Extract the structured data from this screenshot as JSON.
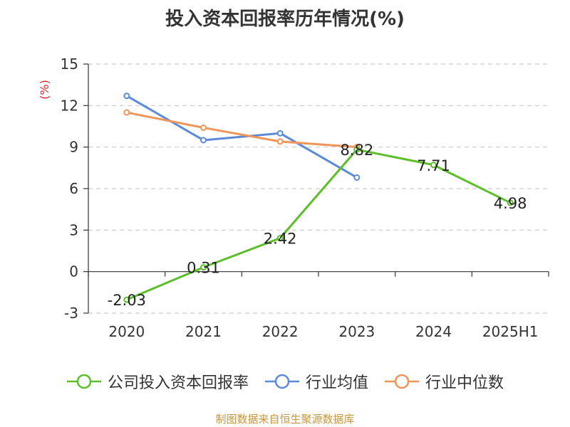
{
  "chart_data": {
    "type": "line",
    "title": "投入资本回报率历年情况(%)",
    "ylabel": "(%)",
    "categories": [
      "2020",
      "2021",
      "2022",
      "2023",
      "2024",
      "2025H1"
    ],
    "ylim": [
      -3,
      15
    ],
    "yticks": [
      -3,
      0,
      3,
      6,
      9,
      12,
      15
    ],
    "grid": true,
    "legend_position": "bottom",
    "series": [
      {
        "name": "公司投入资本回报率",
        "color": "#5cbf2a",
        "values": [
          -2.03,
          0.31,
          2.42,
          8.82,
          7.71,
          4.98
        ],
        "labels": [
          "-2.03",
          "0.31",
          "2.42",
          "8.82",
          "7.71",
          "4.98"
        ]
      },
      {
        "name": "行业均值",
        "color": "#5b8ad8",
        "values": [
          12.7,
          9.5,
          10.0,
          6.8,
          null,
          null
        ]
      },
      {
        "name": "行业中位数",
        "color": "#f0955a",
        "values": [
          11.5,
          10.4,
          9.4,
          9.0,
          null,
          null
        ]
      }
    ]
  },
  "source": "制图数据来自恒生聚源数据库"
}
